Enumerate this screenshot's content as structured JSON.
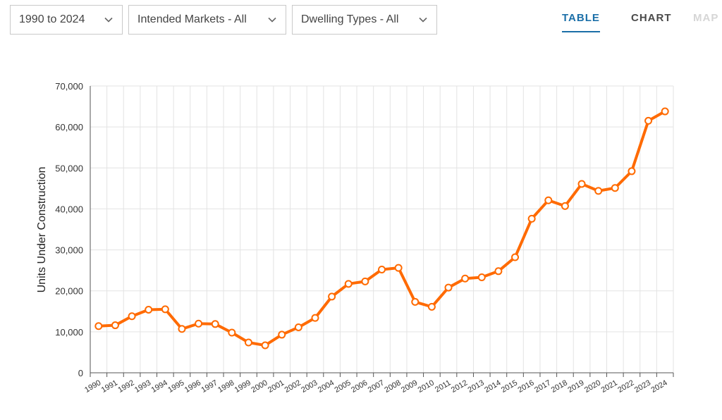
{
  "filters": {
    "period": "1990 to 2024",
    "markets": "Intended Markets - All",
    "dwelling": "Dwelling Types - All"
  },
  "tabs": {
    "table": "TABLE",
    "chart": "CHART",
    "map": "MAP"
  },
  "icons": {
    "dropdown": "chevron-down-icon"
  },
  "colors": {
    "accent": "#1b6fa8",
    "series": "#ff6a00",
    "grid": "#e3e3e3",
    "disabled": "#d6d6d6"
  },
  "chart_data": {
    "type": "line",
    "title": "",
    "xlabel": "",
    "ylabel": "Units Under Construction",
    "ylim": [
      0,
      70000
    ],
    "yticks": [
      0,
      10000,
      20000,
      30000,
      40000,
      50000,
      60000,
      70000
    ],
    "ytick_labels": [
      "0",
      "10,000",
      "20,000",
      "30,000",
      "40,000",
      "50,000",
      "60,000",
      "70,000"
    ],
    "grid": true,
    "legend": "none",
    "categories": [
      "1990",
      "1991",
      "1992",
      "1993",
      "1994",
      "1995",
      "1996",
      "1997",
      "1998",
      "1999",
      "2000",
      "2001",
      "2002",
      "2003",
      "2004",
      "2005",
      "2006",
      "2007",
      "2008",
      "2009",
      "2010",
      "2011",
      "2012",
      "2013",
      "2014",
      "2015",
      "2016",
      "2017",
      "2018",
      "2019",
      "2020",
      "2021",
      "2022",
      "2023",
      "2024"
    ],
    "series": [
      {
        "values": [
          11400,
          11600,
          13800,
          15400,
          15500,
          10700,
          12000,
          11900,
          9800,
          7400,
          6700,
          9300,
          11100,
          13400,
          18600,
          21700,
          22300,
          25200,
          25600,
          17300,
          16100,
          20800,
          23000,
          23300,
          24800,
          28200,
          37600,
          42100,
          40700,
          46100,
          44400,
          45100,
          49200,
          61500,
          63800
        ]
      }
    ]
  }
}
